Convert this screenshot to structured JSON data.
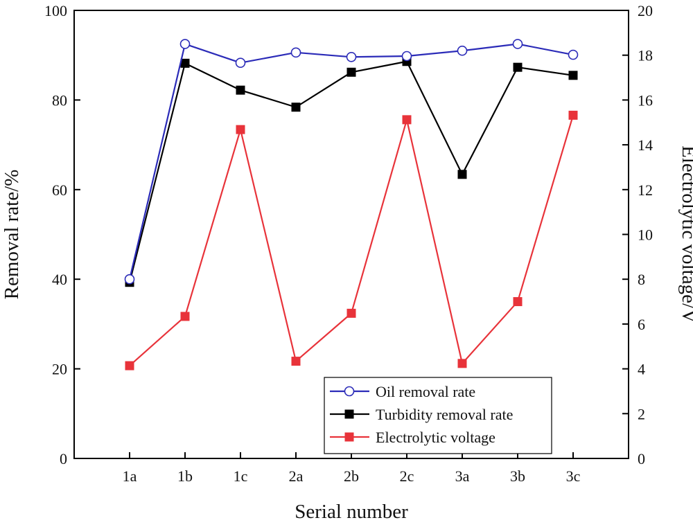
{
  "chart_data": {
    "type": "line",
    "title": "",
    "xlabel": "Serial number",
    "ylabel_left": "Removal rate/%",
    "ylabel_right": "Electrolytic voltage/V",
    "categories": [
      "1a",
      "1b",
      "1c",
      "2a",
      "2b",
      "2c",
      "3a",
      "3b",
      "3c"
    ],
    "ylim_left": [
      0,
      100
    ],
    "yticks_left": [
      0,
      20,
      40,
      60,
      80,
      100
    ],
    "ylim_right": [
      0,
      20
    ],
    "yticks_right": [
      0,
      2,
      4,
      6,
      8,
      10,
      12,
      14,
      16,
      18,
      20
    ],
    "grid": false,
    "legend_position": "bottom-right",
    "series": [
      {
        "name": "Oil removal rate",
        "axis": "left",
        "color": "#2b2bb8",
        "marker": "open-circle",
        "values": [
          40.0,
          92.5,
          88.3,
          90.6,
          89.6,
          89.8,
          91.0,
          92.5,
          90.1
        ]
      },
      {
        "name": "Turbidity removal rate",
        "axis": "left",
        "color": "#000000",
        "marker": "filled-square",
        "values": [
          39.3,
          88.2,
          82.2,
          78.4,
          86.2,
          88.6,
          63.4,
          87.3,
          85.5
        ]
      },
      {
        "name": "Electrolytic voltage",
        "axis": "right",
        "color": "#e8333a",
        "marker": "filled-square",
        "values": [
          4.14,
          6.34,
          14.68,
          4.34,
          6.48,
          15.12,
          4.24,
          7.0,
          15.32
        ]
      }
    ]
  }
}
